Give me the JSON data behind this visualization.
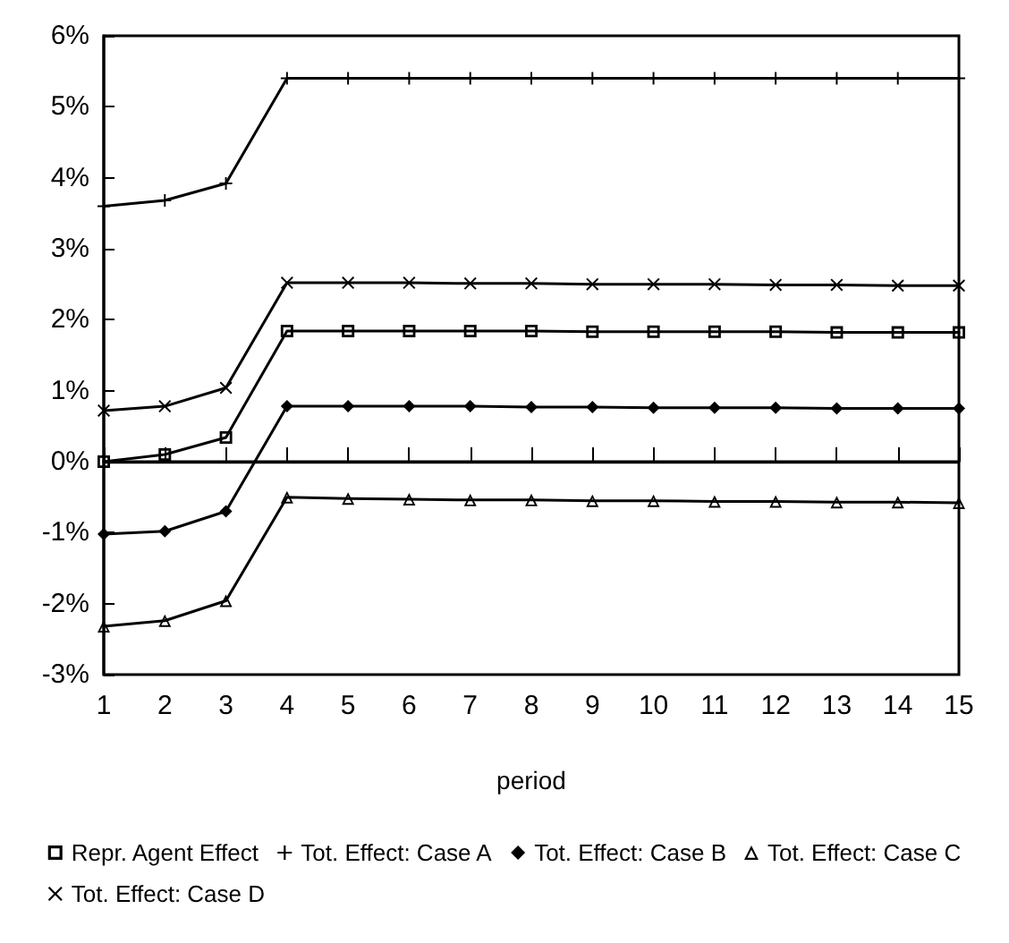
{
  "chart_data": {
    "type": "line",
    "xlabel": "period",
    "x": [
      1,
      2,
      3,
      4,
      5,
      6,
      7,
      8,
      9,
      10,
      11,
      12,
      13,
      14,
      15
    ],
    "xlim": [
      1,
      15
    ],
    "xticks": [
      1,
      2,
      3,
      4,
      5,
      6,
      7,
      8,
      9,
      10,
      11,
      12,
      13,
      14,
      15
    ],
    "ylim": [
      -3,
      6
    ],
    "yticks": [
      {
        "value": -3,
        "label": "-3%"
      },
      {
        "value": -2,
        "label": "-2%"
      },
      {
        "value": -1,
        "label": "-1%"
      },
      {
        "value": 0,
        "label": "0%"
      },
      {
        "value": 1,
        "label": "1%"
      },
      {
        "value": 2,
        "label": "2%"
      },
      {
        "value": 3,
        "label": "3%"
      },
      {
        "value": 4,
        "label": "4%"
      },
      {
        "value": 5,
        "label": "5%"
      },
      {
        "value": 6,
        "label": "6%"
      }
    ],
    "grid": false,
    "legend": "bottom",
    "line_style": "solid",
    "ref_lines": [
      {
        "axis": "y",
        "value": 0,
        "color": "#000000"
      }
    ],
    "series": [
      {
        "name": "Repr. Agent Effect",
        "color": "#000000",
        "marker": "square",
        "values": [
          0,
          0.1,
          0.34,
          1.84,
          1.84,
          1.84,
          1.84,
          1.84,
          1.83,
          1.83,
          1.83,
          1.83,
          1.82,
          1.82,
          1.82
        ]
      },
      {
        "name": "Tot. Effect: Case A",
        "color": "#000000",
        "marker": "plus",
        "values": [
          3.6,
          3.68,
          3.92,
          5.4,
          5.4,
          5.4,
          5.4,
          5.4,
          5.4,
          5.4,
          5.4,
          5.4,
          5.4,
          5.4,
          5.4
        ]
      },
      {
        "name": "Tot. Effect: Case B",
        "color": "#000000",
        "marker": "diamond",
        "values": [
          -1.02,
          -0.98,
          -0.7,
          0.78,
          0.78,
          0.78,
          0.78,
          0.77,
          0.77,
          0.76,
          0.76,
          0.76,
          0.75,
          0.75,
          0.75
        ]
      },
      {
        "name": "Tot. Effect: Case C",
        "color": "#000000",
        "marker": "triangle",
        "values": [
          -2.32,
          -2.24,
          -1.96,
          -0.5,
          -0.52,
          -0.53,
          -0.54,
          -0.54,
          -0.55,
          -0.55,
          -0.56,
          -0.56,
          -0.57,
          -0.57,
          -0.58
        ]
      },
      {
        "name": "Tot. Effect: Case D",
        "color": "#000000",
        "marker": "cross",
        "values": [
          0.72,
          0.78,
          1.04,
          2.52,
          2.52,
          2.52,
          2.51,
          2.51,
          2.5,
          2.5,
          2.5,
          2.49,
          2.49,
          2.48,
          2.48
        ]
      }
    ]
  }
}
